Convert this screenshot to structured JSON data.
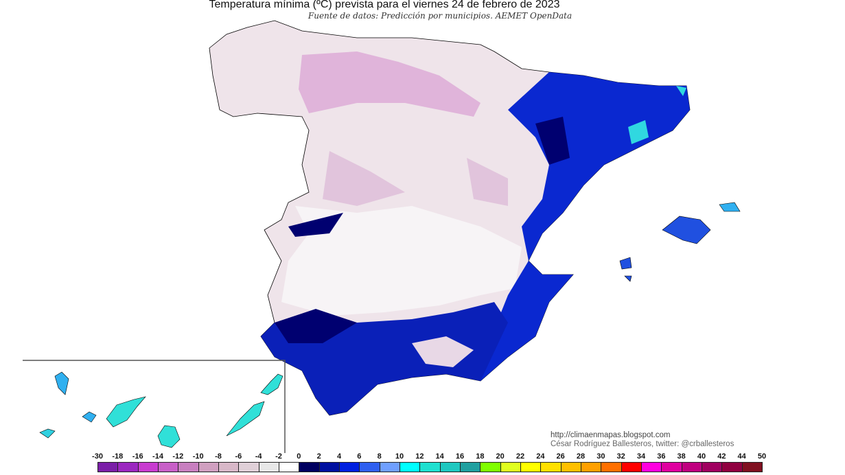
{
  "title": "Temperatura mínima (ºC) prevista para el viernes 24 de febrero de 2023",
  "subtitle": "Fuente de datos: Predicción por municipios. AEMET OpenData",
  "credits": {
    "url": "http://climaenmapas.blogspot.com",
    "author": "César Rodríguez Ballesteros, twitter: @crballesteros"
  },
  "legend": {
    "labels": [
      "-30",
      "-18",
      "-16",
      "-14",
      "-12",
      "-10",
      "-8",
      "-6",
      "-4",
      "-2",
      "0",
      "2",
      "4",
      "6",
      "8",
      "10",
      "12",
      "14",
      "16",
      "18",
      "20",
      "22",
      "24",
      "26",
      "28",
      "30",
      "32",
      "34",
      "36",
      "38",
      "40",
      "42",
      "44",
      "50"
    ],
    "colors": [
      "#7b1fa8",
      "#9b27c0",
      "#c83cd0",
      "#c860c8",
      "#c880c0",
      "#d0a0c0",
      "#d8b8c8",
      "#e0d0d8",
      "#e8e8e8",
      "#ffffff",
      "#000060",
      "#0010a0",
      "#0020e0",
      "#3060f0",
      "#70a0ff",
      "#00ffff",
      "#20e0d0",
      "#20c8c0",
      "#20a0a0",
      "#80ff00",
      "#e0ff20",
      "#ffff00",
      "#ffe000",
      "#ffc000",
      "#ffa000",
      "#ff7000",
      "#ff0000",
      "#ff00e0",
      "#e000a0",
      "#c00080",
      "#a00060",
      "#900040",
      "#801020"
    ]
  },
  "map": {
    "region": "Península Ibérica, Baleares y Canarias",
    "colors": {
      "land_cold": "#e6d6e0",
      "land_mild": "#f4f0f2",
      "coast_blue": "#0a20c8",
      "deep_blue": "#000070",
      "cyan": "#20e0e0",
      "pink": "#d090d0"
    }
  }
}
